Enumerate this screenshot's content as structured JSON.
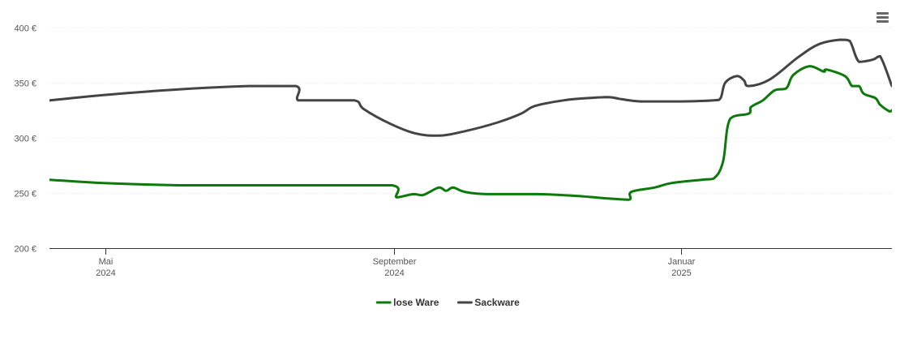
{
  "chart_data": {
    "type": "line",
    "title": "",
    "xlabel": "",
    "ylabel": "",
    "x_axis": {
      "type": "datetime",
      "range": [
        "2024-04-07",
        "2025-04-01"
      ],
      "ticks": [
        {
          "date": "2024-05-01",
          "line1": "Mai",
          "line2": "2024"
        },
        {
          "date": "2024-09-01",
          "line1": "September",
          "line2": "2024"
        },
        {
          "date": "2025-01-01",
          "line1": "Januar",
          "line2": "2025"
        }
      ]
    },
    "y_axis": {
      "range": [
        200,
        400
      ],
      "ticks": [
        200,
        250,
        300,
        350,
        400
      ],
      "tick_labels": [
        "200 €",
        "250 €",
        "300 €",
        "350 €",
        "400 €"
      ],
      "grid": true
    },
    "legend": {
      "position": "bottom-center"
    },
    "series": [
      {
        "name": "lose Ware",
        "color": "#0b7a0b",
        "points": [
          [
            "2024-04-07",
            262
          ],
          [
            "2024-04-30",
            259
          ],
          [
            "2024-06-01",
            257
          ],
          [
            "2024-07-01",
            257
          ],
          [
            "2024-08-01",
            257
          ],
          [
            "2024-08-31",
            257
          ],
          [
            "2024-09-02",
            246
          ],
          [
            "2024-09-09",
            249
          ],
          [
            "2024-09-13",
            248
          ],
          [
            "2024-09-20",
            255
          ],
          [
            "2024-09-23",
            252
          ],
          [
            "2024-09-26",
            255
          ],
          [
            "2024-10-01",
            251
          ],
          [
            "2024-10-11",
            249
          ],
          [
            "2024-11-01",
            249
          ],
          [
            "2024-11-20",
            247
          ],
          [
            "2024-12-01",
            245
          ],
          [
            "2024-12-10",
            244
          ],
          [
            "2024-12-11",
            251
          ],
          [
            "2024-12-21",
            255
          ],
          [
            "2024-12-28",
            259
          ],
          [
            "2025-01-10",
            262
          ],
          [
            "2025-01-15",
            263
          ],
          [
            "2025-01-19",
            278
          ],
          [
            "2025-01-22",
            317
          ],
          [
            "2025-01-30",
            322
          ],
          [
            "2025-01-31",
            328
          ],
          [
            "2025-02-05",
            334
          ],
          [
            "2025-02-10",
            343
          ],
          [
            "2025-02-15",
            345
          ],
          [
            "2025-02-18",
            357
          ],
          [
            "2025-02-25",
            365
          ],
          [
            "2025-03-03",
            360
          ],
          [
            "2025-03-04",
            362
          ],
          [
            "2025-03-12",
            356
          ],
          [
            "2025-03-15",
            347
          ],
          [
            "2025-03-18",
            347
          ],
          [
            "2025-03-20",
            340
          ],
          [
            "2025-03-25",
            336
          ],
          [
            "2025-03-27",
            330
          ],
          [
            "2025-03-31",
            324
          ],
          [
            "2025-04-01",
            325
          ]
        ]
      },
      {
        "name": "Sackware",
        "color": "#444444",
        "points": [
          [
            "2024-04-07",
            334
          ],
          [
            "2024-05-01",
            339
          ],
          [
            "2024-06-01",
            344
          ],
          [
            "2024-07-01",
            347
          ],
          [
            "2024-07-21",
            347
          ],
          [
            "2024-07-22",
            334
          ],
          [
            "2024-08-01",
            334
          ],
          [
            "2024-08-15",
            334
          ],
          [
            "2024-08-19",
            326
          ],
          [
            "2024-08-30",
            313
          ],
          [
            "2024-09-10",
            304
          ],
          [
            "2024-09-20",
            302
          ],
          [
            "2024-10-01",
            306
          ],
          [
            "2024-10-15",
            314
          ],
          [
            "2024-10-25",
            322
          ],
          [
            "2024-10-31",
            329
          ],
          [
            "2024-11-12",
            334
          ],
          [
            "2024-11-22",
            336
          ],
          [
            "2024-12-01",
            337
          ],
          [
            "2024-12-07",
            335
          ],
          [
            "2024-12-15",
            333
          ],
          [
            "2025-01-01",
            333
          ],
          [
            "2025-01-15",
            334
          ],
          [
            "2025-01-18",
            336
          ],
          [
            "2025-01-20",
            350
          ],
          [
            "2025-01-25",
            356
          ],
          [
            "2025-01-28",
            352
          ],
          [
            "2025-01-30",
            347
          ],
          [
            "2025-02-08",
            353
          ],
          [
            "2025-02-20",
            373
          ],
          [
            "2025-03-01",
            385
          ],
          [
            "2025-03-10",
            389
          ],
          [
            "2025-03-14",
            388
          ],
          [
            "2025-03-18",
            369
          ],
          [
            "2025-03-24",
            371
          ],
          [
            "2025-03-27",
            374
          ],
          [
            "2025-04-01",
            347
          ]
        ]
      }
    ]
  }
}
